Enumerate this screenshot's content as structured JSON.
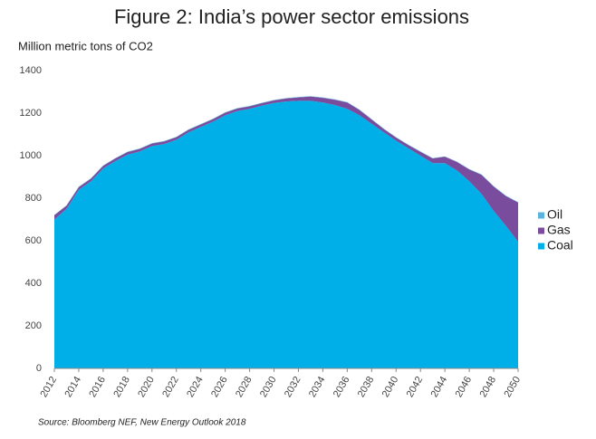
{
  "chart_data": {
    "type": "stacked-area",
    "title": "Figure 2: India’s power sector emissions",
    "y_label": "Million metric tons of CO2",
    "source": "Source: Bloomberg NEF, New Energy Outlook 2018",
    "x": [
      2012,
      2013,
      2014,
      2015,
      2016,
      2017,
      2018,
      2019,
      2020,
      2021,
      2022,
      2023,
      2024,
      2025,
      2026,
      2027,
      2028,
      2029,
      2030,
      2031,
      2032,
      2033,
      2034,
      2035,
      2036,
      2037,
      2038,
      2039,
      2040,
      2041,
      2042,
      2043,
      2044,
      2045,
      2046,
      2047,
      2048,
      2049,
      2050
    ],
    "series": [
      {
        "name": "Coal",
        "color": "#00afe8",
        "values": [
          700,
          750,
          840,
          880,
          940,
          975,
          1005,
          1020,
          1045,
          1055,
          1075,
          1110,
          1135,
          1160,
          1190,
          1210,
          1220,
          1235,
          1248,
          1255,
          1258,
          1258,
          1250,
          1238,
          1220,
          1190,
          1150,
          1110,
          1070,
          1035,
          1000,
          965,
          965,
          930,
          880,
          820,
          740,
          670,
          595
        ]
      },
      {
        "name": "Gas",
        "color": "#7a4c9e",
        "values": [
          20,
          15,
          12,
          12,
          12,
          12,
          12,
          12,
          12,
          12,
          12,
          12,
          12,
          12,
          12,
          12,
          12,
          12,
          12,
          14,
          16,
          20,
          22,
          25,
          30,
          25,
          20,
          15,
          15,
          15,
          18,
          22,
          30,
          40,
          55,
          90,
          115,
          140,
          185
        ]
      },
      {
        "name": "Oil",
        "color": "#5ab4dc",
        "values": [
          2,
          2,
          2,
          2,
          2,
          2,
          2,
          2,
          2,
          2,
          2,
          2,
          2,
          2,
          2,
          2,
          2,
          2,
          2,
          2,
          2,
          2,
          2,
          2,
          2,
          2,
          2,
          2,
          2,
          2,
          2,
          2,
          2,
          2,
          2,
          2,
          2,
          2,
          2
        ]
      }
    ],
    "xlim": [
      2012,
      2050
    ],
    "xticks": [
      2012,
      2014,
      2016,
      2018,
      2020,
      2022,
      2024,
      2026,
      2028,
      2030,
      2032,
      2034,
      2036,
      2038,
      2040,
      2042,
      2044,
      2046,
      2048,
      2050
    ],
    "ylim": [
      0,
      1400
    ],
    "yticks": [
      0,
      200,
      400,
      600,
      800,
      1000,
      1200,
      1400
    ]
  }
}
